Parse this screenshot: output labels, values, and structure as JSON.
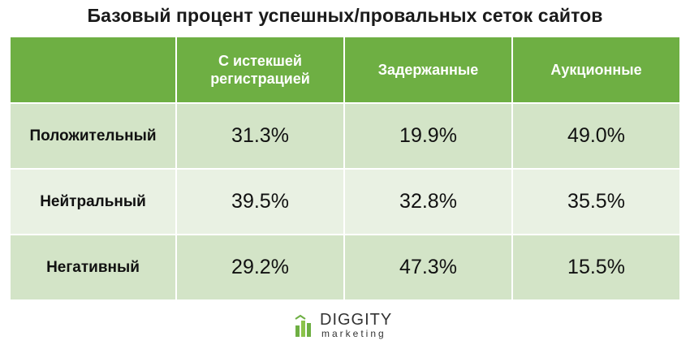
{
  "title": "Базовый процент успешных/провальных сеток сайтов",
  "chart_data": {
    "type": "table",
    "title": "Базовый процент успешных/провальных сеток сайтов",
    "columns": [
      "",
      "С истекшей регистрацией",
      "Задержанные",
      "Аукционные"
    ],
    "rows": [
      {
        "label": "Положительный",
        "values": [
          "31.3%",
          "19.9%",
          "49.0%"
        ]
      },
      {
        "label": "Нейтральный",
        "values": [
          "39.5%",
          "32.8%",
          "35.5%"
        ]
      },
      {
        "label": "Негативный",
        "values": [
          "29.2%",
          "47.3%",
          "15.5%"
        ]
      }
    ]
  },
  "colors": {
    "header_bg": "#6eaf43",
    "row_dark": "#d3e4c7",
    "row_light": "#e9f1e3"
  },
  "logo": {
    "icon": "diggity-bars-icon",
    "brand": "DIGGITY",
    "sub": "marketing"
  }
}
